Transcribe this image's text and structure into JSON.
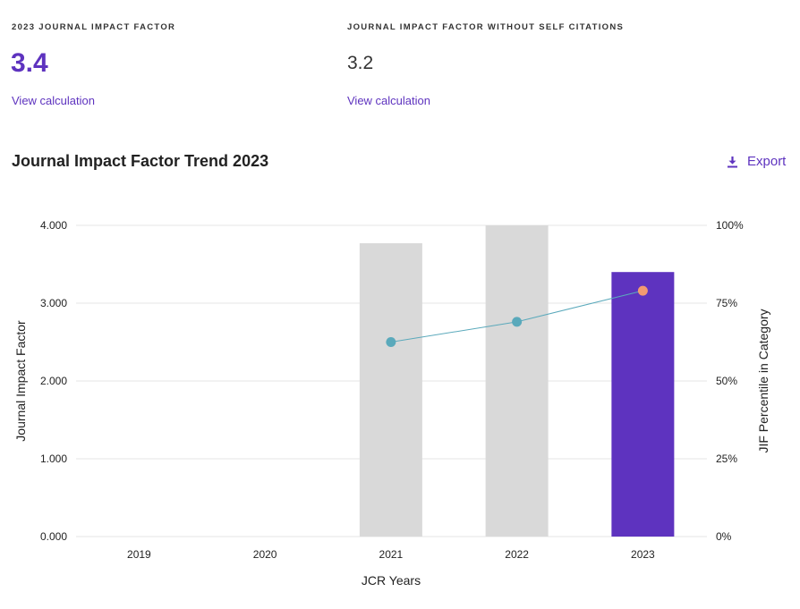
{
  "metrics": [
    {
      "label": "2023 JOURNAL IMPACT FACTOR",
      "value": "3.4",
      "link": "View calculation"
    },
    {
      "label": "JOURNAL IMPACT FACTOR WITHOUT SELF CITATIONS",
      "value": "3.2",
      "link": "View calculation"
    }
  ],
  "chart_header": {
    "title": "Journal Impact Factor Trend 2023",
    "export_label": "Export"
  },
  "colors": {
    "accent": "#5e33bf",
    "bar_previous": "#d9d9d9",
    "line": "#5aa9bb",
    "point_current": "#f39a71"
  },
  "chart_data": {
    "type": "bar",
    "title": "Journal Impact Factor Trend 2023",
    "xlabel": "JCR Years",
    "ylabel": "Journal Impact Factor",
    "y2label": "JIF Percentile in Category",
    "categories": [
      "2019",
      "2020",
      "2021",
      "2022",
      "2023"
    ],
    "ylim": [
      0,
      4
    ],
    "y2lim": [
      0,
      100
    ],
    "yticks": [
      "0.000",
      "1.000",
      "2.000",
      "3.000",
      "4.000"
    ],
    "y2ticks": [
      "0%",
      "25%",
      "50%",
      "75%",
      "100%"
    ],
    "grid": true,
    "series": [
      {
        "type": "bar",
        "values": [
          null,
          null,
          3.77,
          4.0,
          3.4
        ]
      },
      {
        "type": "line",
        "values": [
          null,
          null,
          62.5,
          69,
          79
        ],
        "axis": "right"
      }
    ]
  }
}
